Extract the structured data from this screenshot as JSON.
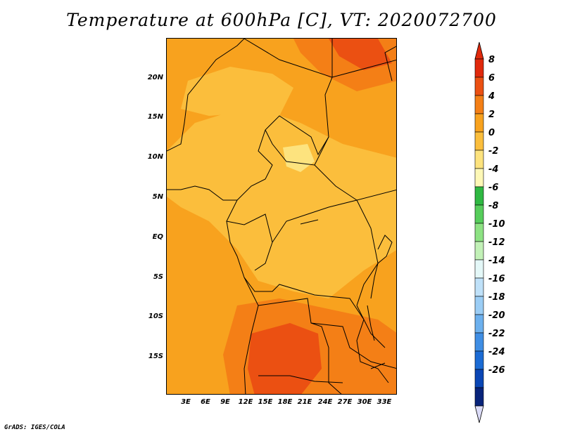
{
  "title": "Temperature at 600hPa [C], VT: 2020072700",
  "credit": "GrADS: IGES/COLA",
  "chart_data": {
    "type": "heatmap",
    "variable": "Temperature",
    "level": "600hPa",
    "units": "C",
    "valid_time": "2020072700",
    "y_ticks": [
      "20N",
      "15N",
      "10N",
      "5N",
      "EQ",
      "5S",
      "10S",
      "15S"
    ],
    "x_ticks": [
      "3E",
      "6E",
      "9E",
      "12E",
      "15E",
      "18E",
      "21E",
      "24E",
      "27E",
      "30E",
      "33E"
    ],
    "colorbar": {
      "levels": [
        8,
        6,
        4,
        2,
        0,
        -2,
        -4,
        -6,
        -8,
        -10,
        -12,
        -14,
        -16,
        -18,
        -20,
        -22,
        -24,
        -26
      ],
      "colors": [
        "#e0290c",
        "#eb5012",
        "#f47f16",
        "#f8a21e",
        "#fbbe3c",
        "#fde37e",
        "#fdf8b6",
        "#2fb842",
        "#56cd5b",
        "#8de283",
        "#c2f1b7",
        "#e4f8f8",
        "#bfe1f9",
        "#9bcdf5",
        "#6cb0ee",
        "#3f8ee4",
        "#1b6bd4",
        "#0a46b5",
        "#08237a"
      ],
      "top_arrow_color": "#e0290c",
      "bottom_arrow_color": "#dcdcf8"
    }
  }
}
